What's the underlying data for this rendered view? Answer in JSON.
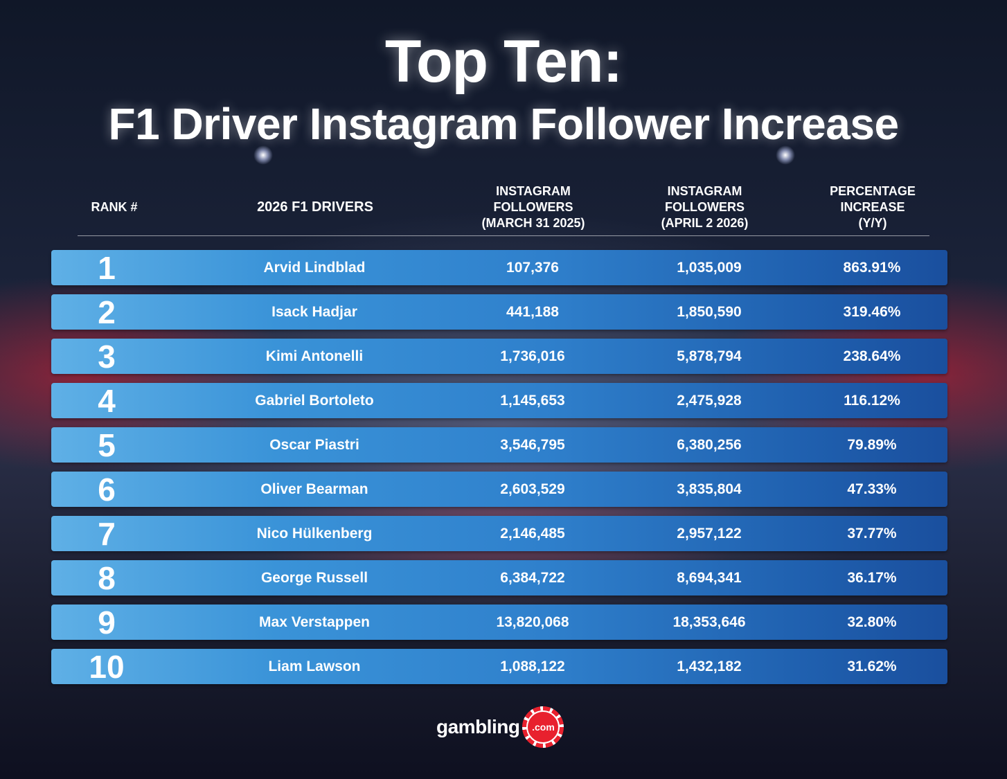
{
  "title": {
    "line1": "Top Ten:",
    "line2": "F1 Driver Instagram Follower Increase"
  },
  "headers": {
    "rank": "RANK #",
    "drivers": "2026 F1 DRIVERS",
    "march": [
      "INSTAGRAM",
      "FOLLOWERS",
      "(MARCH 31 2025)"
    ],
    "april": [
      "INSTAGRAM",
      "FOLLOWERS",
      "(APRIL 2 2026)"
    ],
    "percent": [
      "PERCENTAGE",
      "INCREASE",
      "(Y/Y)"
    ]
  },
  "rows": [
    {
      "rank": "1",
      "name": "Arvid Lindblad",
      "march": "107,376",
      "april": "1,035,009",
      "pct": "863.91%"
    },
    {
      "rank": "2",
      "name": "Isack Hadjar",
      "march": "441,188",
      "april": "1,850,590",
      "pct": "319.46%"
    },
    {
      "rank": "3",
      "name": "Kimi Antonelli",
      "march": "1,736,016",
      "april": "5,878,794",
      "pct": "238.64%"
    },
    {
      "rank": "4",
      "name": "Gabriel Bortoleto",
      "march": "1,145,653",
      "april": "2,475,928",
      "pct": "116.12%"
    },
    {
      "rank": "5",
      "name": "Oscar Piastri",
      "march": "3,546,795",
      "april": "6,380,256",
      "pct": "79.89%"
    },
    {
      "rank": "6",
      "name": "Oliver Bearman",
      "march": "2,603,529",
      "april": "3,835,804",
      "pct": "47.33%"
    },
    {
      "rank": "7",
      "name": "Nico Hülkenberg",
      "march": "2,146,485",
      "april": "2,957,122",
      "pct": "37.77%"
    },
    {
      "rank": "8",
      "name": "George Russell",
      "march": "6,384,722",
      "april": "8,694,341",
      "pct": "36.17%"
    },
    {
      "rank": "9",
      "name": "Max Verstappen",
      "march": "13,820,068",
      "april": "18,353,646",
      "pct": "32.80%"
    },
    {
      "rank": "10",
      "name": "Liam Lawson",
      "march": "1,088,122",
      "april": "1,432,182",
      "pct": "31.62%"
    }
  ],
  "logo": {
    "text": "gambling",
    "chip_text": ".com"
  },
  "colors": {
    "row_light": "#5fb0e6",
    "row_dark": "#1a4f9e",
    "chip_red": "#e8212e"
  }
}
